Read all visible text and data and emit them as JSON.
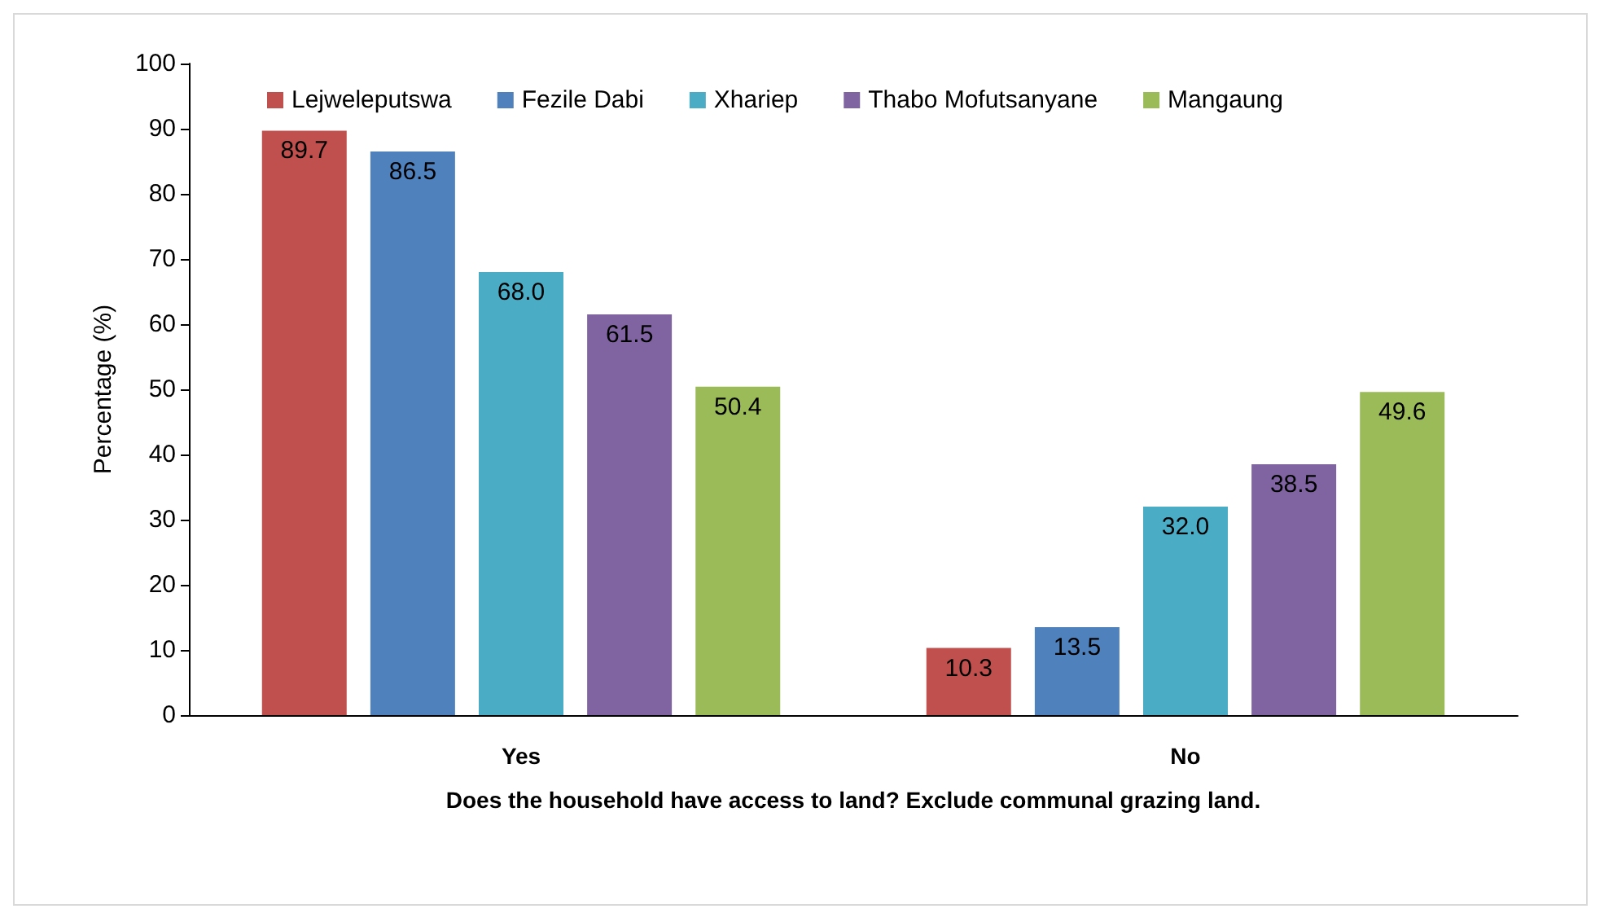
{
  "chart_data": {
    "type": "bar",
    "xlabel": "Does the household have access to land? Exclude communal grazing land.",
    "ylabel": "Percentage (%)",
    "categories": [
      "Yes",
      "No"
    ],
    "series": [
      {
        "name": "Lejweleputswa",
        "color": "#c0504d",
        "values": [
          89.7,
          10.3
        ],
        "value_labels": [
          "89.7",
          "10.3"
        ]
      },
      {
        "name": "Fezile Dabi",
        "color": "#4f81bd",
        "values": [
          86.5,
          13.5
        ],
        "value_labels": [
          "86.5",
          "13.5"
        ]
      },
      {
        "name": "Xhariep",
        "color": "#4bacc6",
        "values": [
          68.0,
          32.0
        ],
        "value_labels": [
          "68.0",
          "32.0"
        ]
      },
      {
        "name": "Thabo Mofutsanyane",
        "color": "#8064a2",
        "values": [
          61.5,
          38.5
        ],
        "value_labels": [
          "61.5",
          "38.5"
        ]
      },
      {
        "name": "Mangaung",
        "color": "#9bbb59",
        "values": [
          50.4,
          49.6
        ],
        "value_labels": [
          "50.4",
          "49.6"
        ]
      }
    ],
    "ylim": [
      0,
      100
    ],
    "yticks": [
      0,
      10,
      20,
      30,
      40,
      50,
      60,
      70,
      80,
      90,
      100
    ],
    "grid": false,
    "legend": "top"
  }
}
